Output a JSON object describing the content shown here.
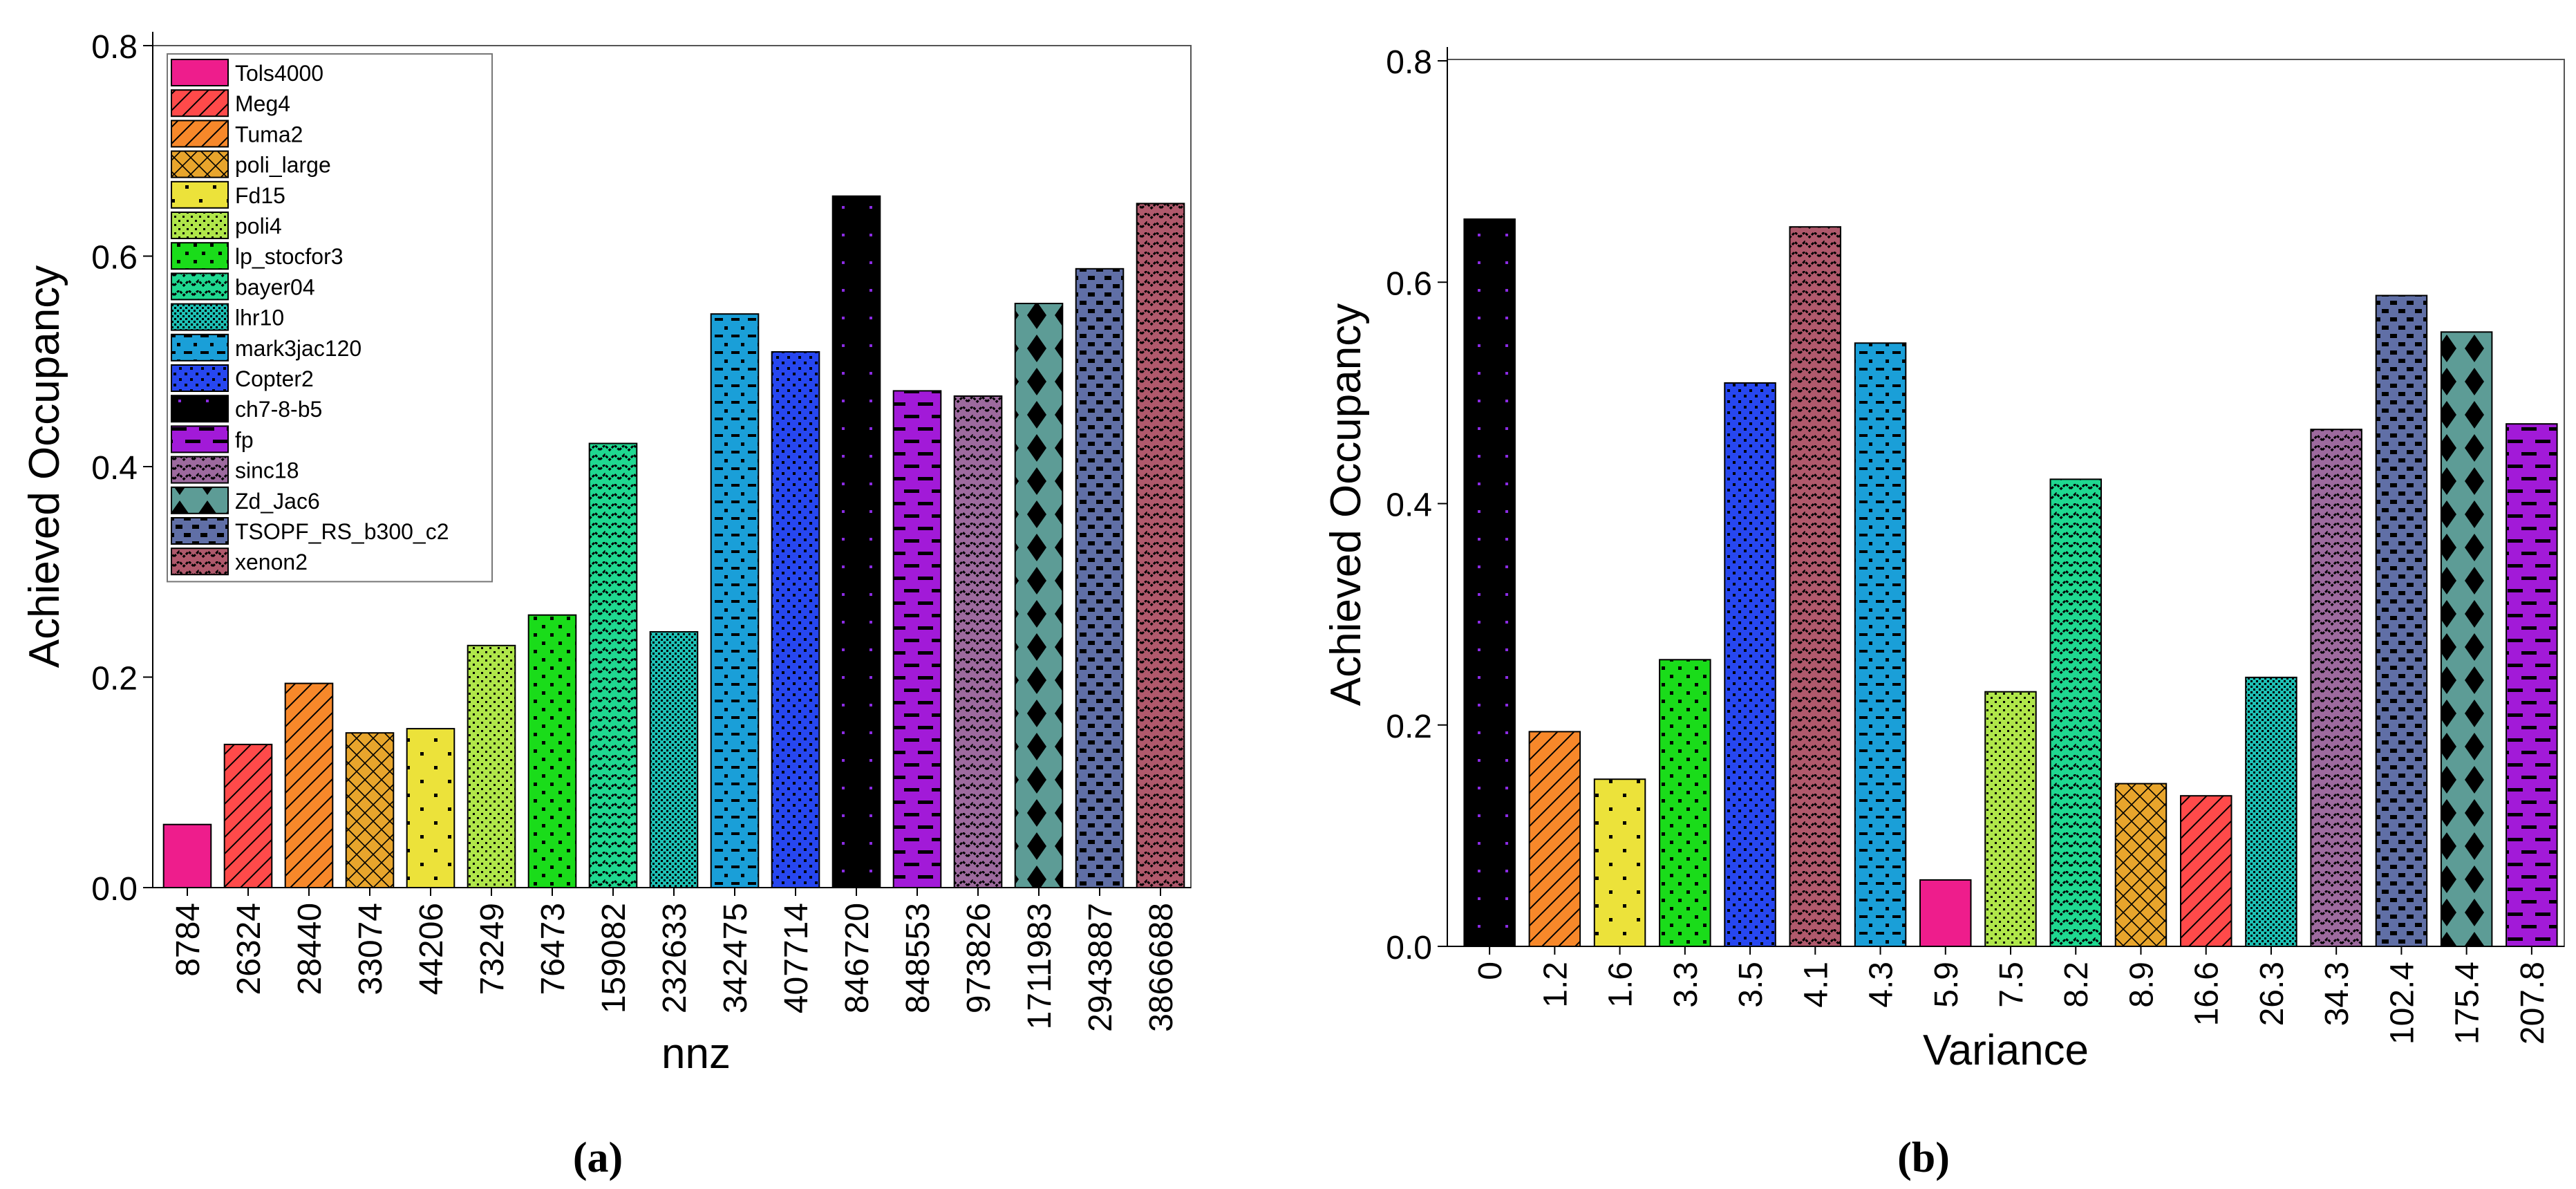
{
  "figure": {
    "caption_a": "(a)",
    "caption_b": "(b)"
  },
  "chart_data": [
    {
      "type": "bar",
      "panel": "a",
      "xlabel": "nnz",
      "ylabel": "Achieved Occupancy",
      "ylim": [
        0,
        0.8
      ],
      "yticks": [
        "0.0",
        "0.2",
        "0.4",
        "0.6",
        "0.8"
      ],
      "legend_position": "top-left",
      "categories": [
        "8784",
        "26324",
        "28440",
        "33074",
        "44206",
        "73249",
        "76473",
        "159082",
        "232633",
        "342475",
        "407714",
        "846720",
        "848553",
        "973826",
        "1711983",
        "2943887",
        "3866688"
      ],
      "series_names": [
        "Tols4000",
        "Meg4",
        "Tuma2",
        "poli_large",
        "Fd15",
        "poli4",
        "lp_stocfor3",
        "bayer04",
        "lhr10",
        "mark3jac120",
        "Copter2",
        "ch7-8-b5",
        "fp",
        "sinc18",
        "Zd_Jac6",
        "TSOPF_RS_b300_c2",
        "xenon2"
      ],
      "values": [
        0.06,
        0.136,
        0.194,
        0.147,
        0.151,
        0.23,
        0.259,
        0.422,
        0.243,
        0.545,
        0.509,
        0.657,
        0.472,
        0.467,
        0.555,
        0.588,
        0.65
      ]
    },
    {
      "type": "bar",
      "panel": "b",
      "xlabel": "Variance",
      "ylabel": "Achieved Occupancy",
      "ylim": [
        0,
        0.8
      ],
      "yticks": [
        "0.0",
        "0.2",
        "0.4",
        "0.6",
        "0.8"
      ],
      "categories": [
        "0",
        "1.2",
        "1.6",
        "3.3",
        "3.5",
        "4.1",
        "4.3",
        "5.9",
        "7.5",
        "8.2",
        "8.9",
        "16.6",
        "26.3",
        "34.3",
        "102.4",
        "175.4",
        "207.8"
      ],
      "series_order": [
        "ch7-8-b5",
        "Tuma2",
        "Fd15",
        "lp_stocfor3",
        "Copter2",
        "xenon2",
        "mark3jac120",
        "Tols4000",
        "poli4",
        "bayer04",
        "poli_large",
        "Meg4",
        "lhr10",
        "sinc18",
        "TSOPF_RS_b300_c2",
        "Zd_Jac6",
        "fp"
      ],
      "values": [
        0.657,
        0.194,
        0.151,
        0.259,
        0.509,
        0.65,
        0.545,
        0.06,
        0.23,
        0.422,
        0.147,
        0.136,
        0.243,
        0.467,
        0.588,
        0.555,
        0.472
      ]
    }
  ],
  "series_colors": {
    "Tols4000": "#ee1d8c",
    "Meg4": "#ff4a4a",
    "Tuma2": "#f7882a",
    "poli_large": "#e8a52c",
    "Fd15": "#ece23a",
    "poli4": "#b0e64a",
    "lp_stocfor3": "#1adc1a",
    "bayer04": "#1fd890",
    "lhr10": "#1ec1b5",
    "mark3jac120": "#1a9fd8",
    "Copter2": "#2747f0",
    "ch7-8-b5": "#000000",
    "fp": "#a21ad8",
    "sinc18": "#9d6a9e",
    "Zd_Jac6": "#5d9c96",
    "TSOPF_RS_b300_c2": "#606fa6",
    "xenon2": "#b0596c"
  },
  "series_patterns": {
    "Tols4000": "solid",
    "Meg4": "diag",
    "Tuma2": "diag",
    "poli_large": "cross",
    "Fd15": "sparse-dots",
    "poli4": "checker",
    "lp_stocfor3": "dots",
    "bayer04": "zigzag",
    "lhr10": "fine-checker",
    "mark3jac120": "dash-dots",
    "Copter2": "dense-dots",
    "ch7-8-b5": "purple-dots",
    "fp": "dashes",
    "sinc18": "zigzag",
    "Zd_Jac6": "diamonds",
    "TSOPF_RS_b300_c2": "dash-blocks",
    "xenon2": "zigzag"
  }
}
